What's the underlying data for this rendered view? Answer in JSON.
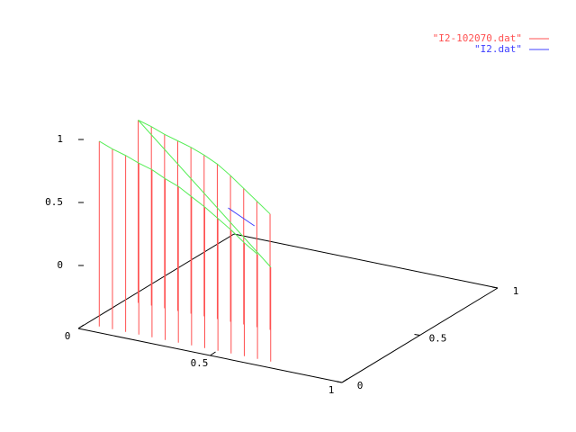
{
  "chart_data": {
    "type": "impulse3d",
    "series": [
      {
        "name": "\"I2-102070.dat\"",
        "color": "#ff5050",
        "style": "impulses",
        "rows": 2,
        "x": [
          0.05,
          0.1,
          0.15,
          0.2,
          0.25,
          0.3,
          0.35,
          0.4,
          0.45,
          0.5,
          0.55,
          0.6,
          0.65,
          0.7,
          0.05,
          0.1,
          0.15,
          0.2,
          0.25,
          0.3,
          0.35,
          0.4,
          0.45,
          0.5,
          0.55
        ],
        "y": [
          0.05,
          0.05,
          0.05,
          0.05,
          0.05,
          0.05,
          0.05,
          0.05,
          0.05,
          0.05,
          0.05,
          0.05,
          0.05,
          0.05,
          0.3,
          0.3,
          0.3,
          0.3,
          0.3,
          0.3,
          0.3,
          0.3,
          0.3,
          0.3,
          0.3
        ],
        "z": [
          0.97,
          0.93,
          0.9,
          0.86,
          0.83,
          0.78,
          0.74,
          0.68,
          0.62,
          0.55,
          0.48,
          0.4,
          0.33,
          0.25,
          0.95,
          0.92,
          0.88,
          0.85,
          0.82,
          0.78,
          0.73,
          0.66,
          0.58,
          0.5,
          0.42
        ]
      },
      {
        "name": "\"I2.dat\"",
        "color": "#4040ff",
        "style": "lines",
        "x": [
          0.45,
          0.5,
          0.55
        ],
        "y": [
          0.2,
          0.2,
          0.2
        ],
        "z": [
          0.5,
          0.45,
          0.4
        ]
      }
    ],
    "surface_color": "#55ee55",
    "xlim": [
      0,
      1
    ],
    "ylim": [
      0,
      1
    ],
    "zlim": [
      -0.5,
      1
    ],
    "xticks": [
      0,
      0.5,
      1
    ],
    "yticks": [
      0,
      0.5,
      1
    ],
    "zticks": [
      0,
      0.5,
      1
    ],
    "legend": "top-right"
  }
}
